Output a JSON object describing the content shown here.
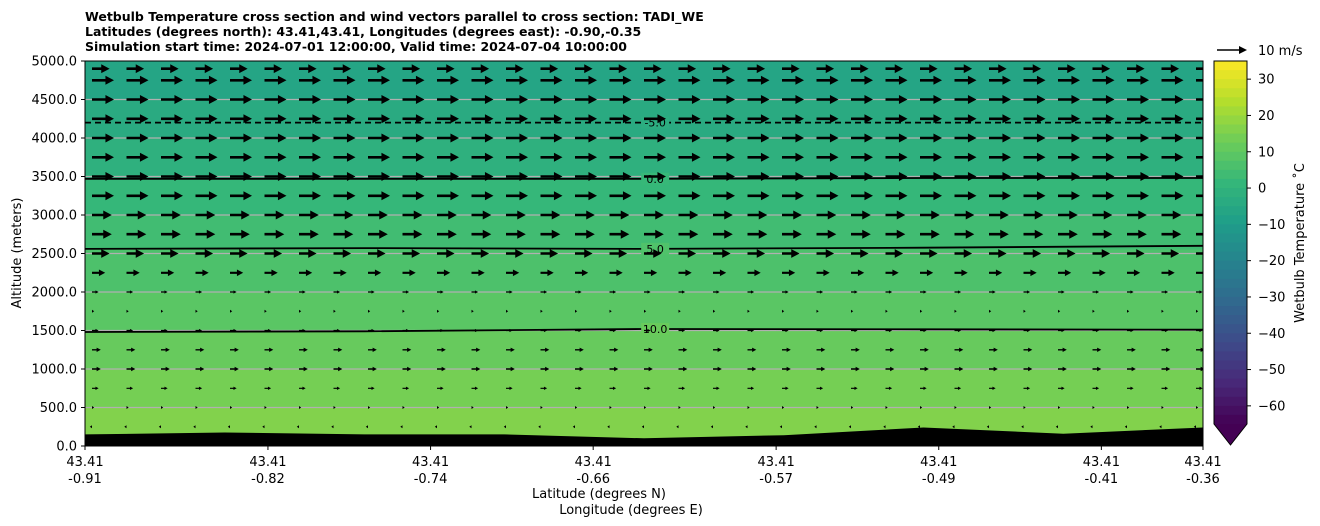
{
  "chart_data": {
    "type": "heatmap",
    "title_lines": [
      "Wetbulb Temperature cross section and wind vectors parallel to cross section: TADI_WE",
      "Latitudes (degrees north): 43.41,43.41, Longitudes (degrees east): -0.90,-0.35",
      "Simulation start time: 2024-07-01 12:00:00, Valid time: 2024-07-04 10:00:00"
    ],
    "ylabel": "Altitude (meters)",
    "xlabel": "Latitude (degrees N)",
    "xlabel2": "Longitude (degrees E)",
    "ylim": [
      0,
      5000
    ],
    "yticks": [
      "0.0",
      "500.0",
      "1000.0",
      "1500.0",
      "2000.0",
      "2500.0",
      "3000.0",
      "3500.0",
      "4000.0",
      "4500.0",
      "5000.0"
    ],
    "ytick_values": [
      0,
      500,
      1000,
      1500,
      2000,
      2500,
      3000,
      3500,
      4000,
      4500,
      5000
    ],
    "xticks": [
      {
        "lat": "43.41",
        "lon": "-0.91"
      },
      {
        "lat": "43.41",
        "lon": "-0.82"
      },
      {
        "lat": "43.41",
        "lon": "-0.74"
      },
      {
        "lat": "43.41",
        "lon": "-0.66"
      },
      {
        "lat": "43.41",
        "lon": "-0.57"
      },
      {
        "lat": "43.41",
        "lon": "-0.49"
      },
      {
        "lat": "43.41",
        "lon": "-0.41"
      },
      {
        "lat": "43.41",
        "lon": "-0.36"
      }
    ],
    "xtick_lon_values": [
      -0.91,
      -0.82,
      -0.74,
      -0.66,
      -0.57,
      -0.49,
      -0.41,
      -0.36
    ],
    "xlim_lon": [
      -0.91,
      -0.36
    ],
    "grid": "horizontal",
    "colorbar": {
      "label": "Wetbulb Temperature $^\\circ$C",
      "label_display": "Wetbulb Temperature ˚C",
      "ticks": [
        "30",
        "20",
        "10",
        "0",
        "−10",
        "−20",
        "−30",
        "−40",
        "−50",
        "−60"
      ],
      "tick_values": [
        30,
        20,
        10,
        0,
        -10,
        -20,
        -30,
        -40,
        -50,
        -60
      ],
      "range": [
        -65,
        35
      ],
      "colormap": "viridis",
      "extend": "min"
    },
    "wind_key": {
      "label": "10 m/s",
      "speed": 10
    },
    "contours": [
      {
        "level": -5,
        "label": "-5.0",
        "style": "dashed",
        "altitudes": [
          4200,
          4200,
          4200,
          4200,
          4200
        ]
      },
      {
        "level": 0,
        "label": "0.0",
        "style": "solid",
        "altitudes": [
          3470,
          3470,
          3470,
          3480,
          3480
        ]
      },
      {
        "level": 5,
        "label": "5.0",
        "style": "solid",
        "altitudes": [
          2560,
          2570,
          2560,
          2575,
          2600
        ]
      },
      {
        "level": 10,
        "label": "10.0",
        "style": "solid",
        "altitudes": [
          1480,
          1490,
          1520,
          1515,
          1510
        ]
      }
    ],
    "field_bands": [
      {
        "from": 0,
        "to": 500,
        "value": 16
      },
      {
        "from": 500,
        "to": 1000,
        "value": 14
      },
      {
        "from": 1000,
        "to": 1500,
        "value": 11.5
      },
      {
        "from": 1500,
        "to": 2000,
        "value": 9
      },
      {
        "from": 2000,
        "to": 2560,
        "value": 6.5
      },
      {
        "from": 2560,
        "to": 3000,
        "value": 4
      },
      {
        "from": 3000,
        "to": 3470,
        "value": 1.5
      },
      {
        "from": 3470,
        "to": 4000,
        "value": -1.5
      },
      {
        "from": 4000,
        "to": 4500,
        "value": -4
      },
      {
        "from": 4500,
        "to": 5000,
        "value": -6.5
      }
    ],
    "terrain_altitudes": [
      150,
      175,
      150,
      150,
      100,
      140,
      240,
      160,
      240
    ],
    "wind_levels": [
      {
        "alt": 4900,
        "u": 8
      },
      {
        "alt": 4750,
        "u": 10
      },
      {
        "alt": 4500,
        "u": 10
      },
      {
        "alt": 4250,
        "u": 10
      },
      {
        "alt": 4000,
        "u": 10
      },
      {
        "alt": 3750,
        "u": 10
      },
      {
        "alt": 3500,
        "u": 10
      },
      {
        "alt": 3250,
        "u": 10
      },
      {
        "alt": 3000,
        "u": 9
      },
      {
        "alt": 2750,
        "u": 9
      },
      {
        "alt": 2500,
        "u": 8
      },
      {
        "alt": 2250,
        "u": 6
      },
      {
        "alt": 2000,
        "u": 3
      },
      {
        "alt": 1750,
        "u": 1
      },
      {
        "alt": 1500,
        "u": 3
      },
      {
        "alt": 1250,
        "u": 4
      },
      {
        "alt": 1000,
        "u": 4
      },
      {
        "alt": 750,
        "u": 3
      },
      {
        "alt": 500,
        "u": 1
      },
      {
        "alt": 250,
        "u": -1
      }
    ]
  }
}
